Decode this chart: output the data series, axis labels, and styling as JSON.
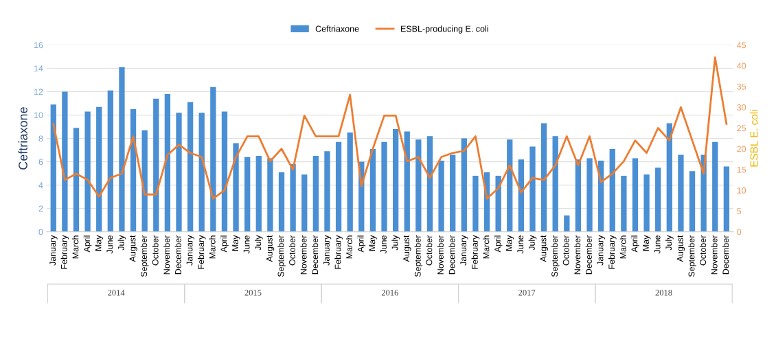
{
  "chart_data": {
    "type": "bar",
    "ylabel": "Ceftriaxone",
    "y2label": "ESBL E. coli",
    "categories": [
      "January",
      "February",
      "March",
      "April",
      "May",
      "June",
      "July",
      "August",
      "September",
      "October",
      "November",
      "December",
      "January",
      "February",
      "March",
      "April",
      "May",
      "June",
      "July",
      "August",
      "September",
      "October",
      "November",
      "December",
      "January",
      "February",
      "March",
      "April",
      "May",
      "June",
      "July",
      "August",
      "September",
      "October",
      "November",
      "December",
      "January",
      "February",
      "March",
      "April",
      "May",
      "June",
      "July",
      "August",
      "September",
      "October",
      "November",
      "December",
      "January",
      "February",
      "March",
      "April",
      "May",
      "June",
      "July",
      "August",
      "September",
      "October",
      "November",
      "December"
    ],
    "series": [
      {
        "name": "Ceftriaxone",
        "color": "#4a8fd3",
        "values": [
          10.9,
          12.0,
          8.9,
          10.3,
          10.7,
          12.1,
          14.1,
          10.5,
          8.7,
          11.4,
          11.8,
          10.2,
          11.1,
          10.2,
          12.4,
          10.3,
          7.6,
          6.4,
          6.5,
          6.3,
          5.1,
          5.8,
          4.9,
          6.5,
          6.9,
          7.7,
          8.5,
          6.0,
          7.1,
          7.7,
          8.8,
          8.6,
          7.9,
          8.2,
          6.1,
          6.6,
          8.0,
          4.8,
          5.1,
          4.8,
          7.9,
          6.2,
          7.3,
          9.3,
          8.2,
          1.4,
          6.2,
          6.3,
          6.1,
          7.1,
          4.8,
          6.3,
          4.9,
          5.5,
          9.3,
          6.6,
          5.2,
          6.6,
          7.7,
          5.6
        ]
      },
      {
        "name": "ESBL-producing E. coli",
        "type": "line",
        "axis": "y2",
        "color": "#ed7d31",
        "values": [
          26,
          12.5,
          14,
          12.5,
          8.5,
          13,
          14,
          23,
          9,
          9,
          18.5,
          21,
          19,
          18,
          8,
          10,
          18,
          23,
          23,
          17,
          20,
          15,
          28,
          23,
          23,
          23,
          33,
          11,
          20,
          28,
          28,
          17,
          18,
          13,
          18,
          19,
          19.5,
          23,
          8,
          10.5,
          16,
          9.5,
          13,
          12.5,
          16,
          23,
          16,
          23,
          12,
          14,
          17,
          22,
          19,
          25,
          22,
          30,
          22,
          14,
          42,
          26
        ]
      }
    ],
    "ylim": [
      0,
      16
    ],
    "yticks": [
      0,
      2,
      4,
      6,
      8,
      10,
      12,
      14,
      16
    ],
    "y2lim": [
      0,
      45
    ],
    "y2ticks": [
      0,
      5,
      10,
      15,
      20,
      25,
      30,
      35,
      40,
      45
    ],
    "grid": "y",
    "legend": "top",
    "annotations": [
      "2014",
      "2015",
      "2016",
      "2017",
      "2018"
    ]
  }
}
